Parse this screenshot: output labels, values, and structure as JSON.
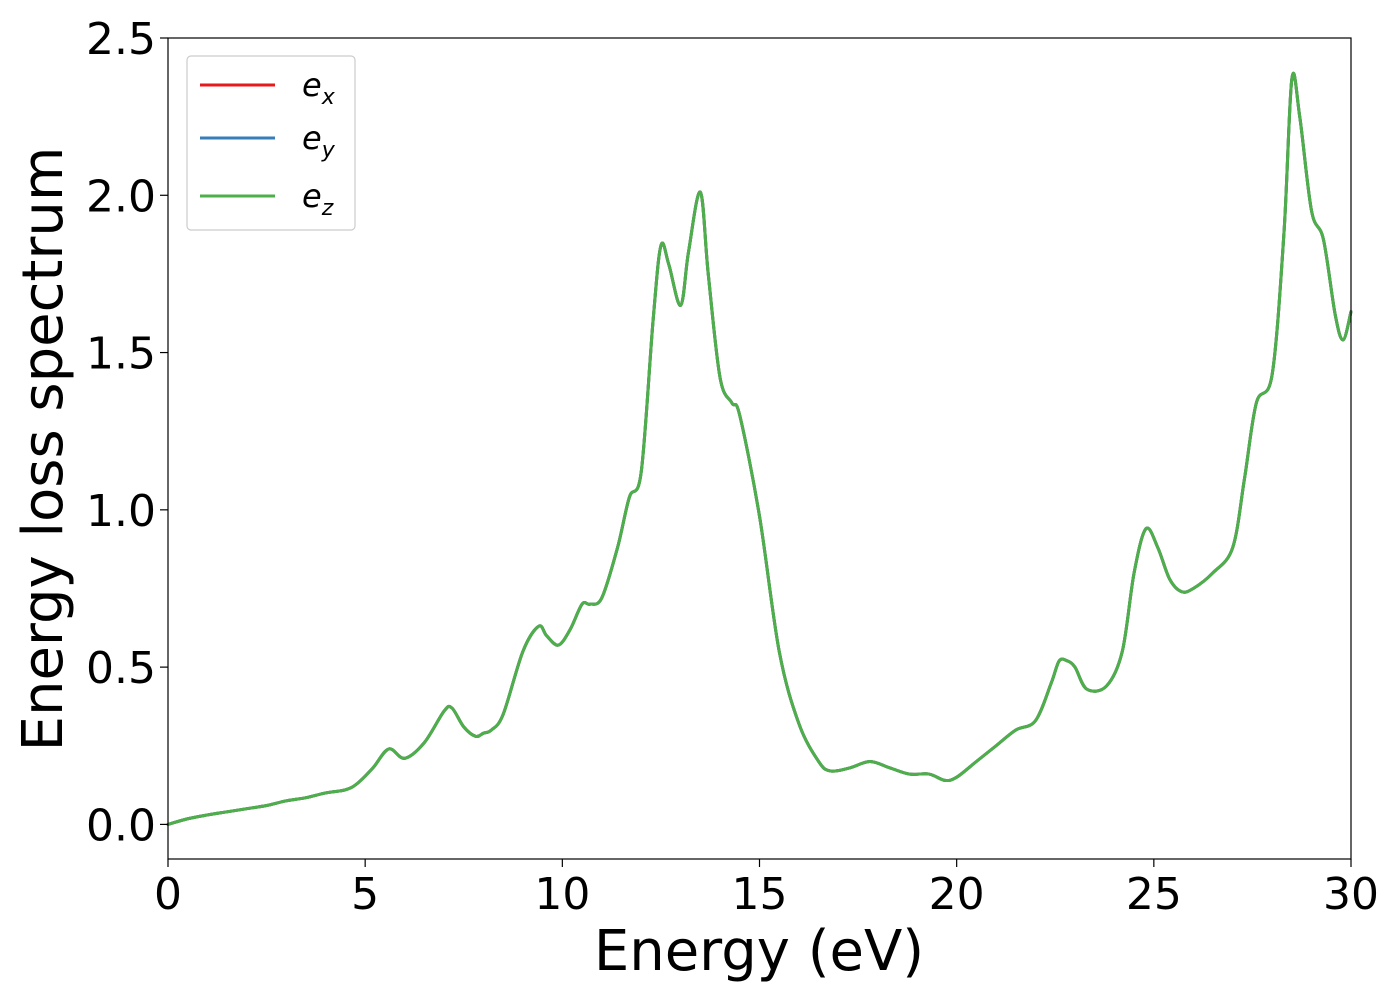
{
  "chart_data": {
    "type": "line",
    "xlabel": "Energy (eV)",
    "ylabel": "Energy loss spectrum",
    "xlim": [
      0,
      30
    ],
    "ylim": [
      -0.11,
      2.5
    ],
    "xticks": [
      "0",
      "5",
      "10",
      "15",
      "20",
      "25",
      "30"
    ],
    "yticks": [
      "0.0",
      "0.5",
      "1.0",
      "1.5",
      "2.0",
      "2.5"
    ],
    "grid": false,
    "legend_placement": "top-left",
    "x": [
      0,
      0.5,
      1,
      1.5,
      2,
      2.5,
      3,
      3.5,
      4,
      4.5,
      4.8,
      5.2,
      5.6,
      6,
      6.5,
      7,
      7.2,
      7.5,
      7.8,
      8,
      8.2,
      8.5,
      9,
      9.4,
      9.6,
      9.9,
      10.2,
      10.5,
      10.7,
      11,
      11.4,
      11.7,
      12,
      12.3,
      12.5,
      12.7,
      13,
      13.2,
      13.5,
      13.7,
      14,
      14.3,
      14.5,
      15,
      15.5,
      16,
      16.5,
      16.8,
      17.3,
      17.8,
      18.3,
      18.8,
      19.3,
      19.7,
      20,
      20.5,
      21,
      21.5,
      22,
      22.4,
      22.6,
      22.8,
      23,
      23.3,
      23.8,
      24.2,
      24.5,
      24.8,
      25.1,
      25.4,
      25.7,
      26,
      26.5,
      27,
      27.3,
      27.6,
      28,
      28.3,
      28.5,
      28.7,
      29,
      29.3,
      29.6,
      29.8,
      30
    ],
    "series": [
      {
        "name": "e_x",
        "label_base": "e",
        "label_sub": "x",
        "color": "#e41a1c",
        "values": [
          0.0,
          0.018,
          0.03,
          0.04,
          0.05,
          0.06,
          0.075,
          0.085,
          0.1,
          0.11,
          0.13,
          0.18,
          0.24,
          0.21,
          0.26,
          0.36,
          0.37,
          0.31,
          0.28,
          0.29,
          0.3,
          0.35,
          0.55,
          0.63,
          0.6,
          0.57,
          0.62,
          0.7,
          0.7,
          0.72,
          0.88,
          1.04,
          1.12,
          1.6,
          1.84,
          1.78,
          1.65,
          1.82,
          2.01,
          1.75,
          1.42,
          1.34,
          1.3,
          0.98,
          0.55,
          0.32,
          0.2,
          0.17,
          0.18,
          0.2,
          0.18,
          0.16,
          0.16,
          0.14,
          0.15,
          0.2,
          0.25,
          0.3,
          0.33,
          0.45,
          0.52,
          0.52,
          0.5,
          0.43,
          0.44,
          0.55,
          0.8,
          0.94,
          0.88,
          0.78,
          0.74,
          0.75,
          0.8,
          0.88,
          1.1,
          1.34,
          1.43,
          1.88,
          2.37,
          2.25,
          1.95,
          1.86,
          1.62,
          1.54,
          1.63
        ]
      },
      {
        "name": "e_y",
        "label_base": "e",
        "label_sub": "y",
        "color": "#377eb8",
        "values": [
          0.0,
          0.018,
          0.03,
          0.04,
          0.05,
          0.06,
          0.075,
          0.085,
          0.1,
          0.11,
          0.13,
          0.18,
          0.24,
          0.21,
          0.26,
          0.36,
          0.37,
          0.31,
          0.28,
          0.29,
          0.3,
          0.35,
          0.55,
          0.63,
          0.6,
          0.57,
          0.62,
          0.7,
          0.7,
          0.72,
          0.88,
          1.04,
          1.12,
          1.6,
          1.84,
          1.78,
          1.65,
          1.82,
          2.01,
          1.75,
          1.42,
          1.34,
          1.3,
          0.98,
          0.55,
          0.32,
          0.2,
          0.17,
          0.18,
          0.2,
          0.18,
          0.16,
          0.16,
          0.14,
          0.15,
          0.2,
          0.25,
          0.3,
          0.33,
          0.45,
          0.52,
          0.52,
          0.5,
          0.43,
          0.44,
          0.55,
          0.8,
          0.94,
          0.88,
          0.78,
          0.74,
          0.75,
          0.8,
          0.88,
          1.1,
          1.34,
          1.43,
          1.88,
          2.37,
          2.25,
          1.95,
          1.86,
          1.62,
          1.54,
          1.63
        ]
      },
      {
        "name": "e_z",
        "label_base": "e",
        "label_sub": "z",
        "color": "#4daf4a",
        "values": [
          0.0,
          0.018,
          0.03,
          0.04,
          0.05,
          0.06,
          0.075,
          0.085,
          0.1,
          0.11,
          0.13,
          0.18,
          0.24,
          0.21,
          0.26,
          0.36,
          0.37,
          0.31,
          0.28,
          0.29,
          0.3,
          0.35,
          0.55,
          0.63,
          0.6,
          0.57,
          0.62,
          0.7,
          0.7,
          0.72,
          0.88,
          1.04,
          1.12,
          1.6,
          1.84,
          1.78,
          1.65,
          1.82,
          2.01,
          1.75,
          1.42,
          1.34,
          1.3,
          0.98,
          0.55,
          0.32,
          0.2,
          0.17,
          0.18,
          0.2,
          0.18,
          0.16,
          0.16,
          0.14,
          0.15,
          0.2,
          0.25,
          0.3,
          0.33,
          0.45,
          0.52,
          0.52,
          0.5,
          0.43,
          0.44,
          0.55,
          0.8,
          0.94,
          0.88,
          0.78,
          0.74,
          0.75,
          0.8,
          0.88,
          1.1,
          1.34,
          1.43,
          1.88,
          2.37,
          2.25,
          1.95,
          1.86,
          1.62,
          1.54,
          1.63
        ]
      }
    ]
  }
}
